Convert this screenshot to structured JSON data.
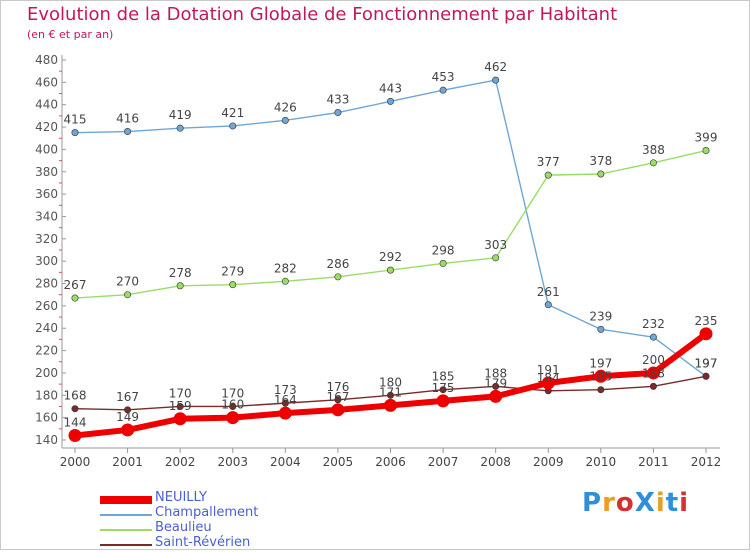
{
  "chart_data": {
    "type": "line",
    "title": "Evolution de la Dotation Globale de Fonctionnement par Habitant",
    "subtitle": "(en € et par an)",
    "xlabel": "",
    "ylabel": "",
    "x": [
      "2000",
      "2001",
      "2002",
      "2003",
      "2004",
      "2005",
      "2006",
      "2007",
      "2008",
      "2009",
      "2010",
      "2011",
      "2012"
    ],
    "ylim": [
      140,
      480
    ],
    "yticks": [
      140,
      160,
      180,
      200,
      220,
      240,
      260,
      280,
      300,
      320,
      340,
      360,
      380,
      400,
      420,
      440,
      460,
      480
    ],
    "grid": false,
    "legend_position": "bottom-left",
    "series": [
      {
        "name": "NEUILLY",
        "color": "#ee0000",
        "emphasis": true,
        "values": [
          144,
          149,
          159,
          160,
          164,
          167,
          171,
          175,
          179,
          191,
          197,
          200,
          235
        ],
        "labels": [
          "144",
          "149",
          "159",
          "160",
          "164",
          "167",
          "171",
          "175",
          "179",
          "191",
          "197",
          "200",
          "235"
        ]
      },
      {
        "name": "Champallement",
        "color": "#6ea6d6",
        "emphasis": false,
        "values": [
          415,
          416,
          419,
          421,
          426,
          433,
          443,
          453,
          462,
          261,
          239,
          232,
          197
        ],
        "labels": [
          "415",
          "416",
          "419",
          "421",
          "426",
          "433",
          "443",
          "453",
          "462",
          "261",
          "239",
          "232",
          "197"
        ]
      },
      {
        "name": "Beaulieu",
        "color": "#99dd66",
        "emphasis": false,
        "values": [
          267,
          270,
          278,
          279,
          282,
          286,
          292,
          298,
          303,
          377,
          378,
          388,
          399
        ],
        "labels": [
          "267",
          "270",
          "278",
          "279",
          "282",
          "286",
          "292",
          "298",
          "303",
          "377",
          "378",
          "388",
          "399"
        ]
      },
      {
        "name": "Saint-Révérien",
        "color": "#7a2a2a",
        "emphasis": false,
        "values": [
          168,
          167,
          170,
          170,
          173,
          176,
          180,
          185,
          188,
          184,
          185,
          188,
          197
        ],
        "labels": [
          "168",
          "167",
          "170",
          "170",
          "173",
          "176",
          "180",
          "185",
          "188",
          "184",
          "185",
          "188",
          "197"
        ]
      }
    ]
  },
  "brand": {
    "text": "ProXiti"
  }
}
